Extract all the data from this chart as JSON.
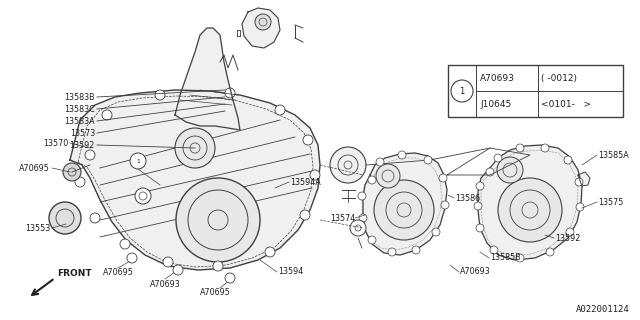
{
  "bg_color": "#ffffff",
  "line_color": "#404040",
  "text_color": "#202020",
  "catalog_num": "A022001124",
  "part_number_box": {
    "row1_col1": "A70693",
    "row1_col2": "( -0012)",
    "row2_col1": "J10645",
    "row2_col2": "<0101-   >"
  },
  "font_size_labels": 5.8,
  "font_size_catalog": 6.5
}
